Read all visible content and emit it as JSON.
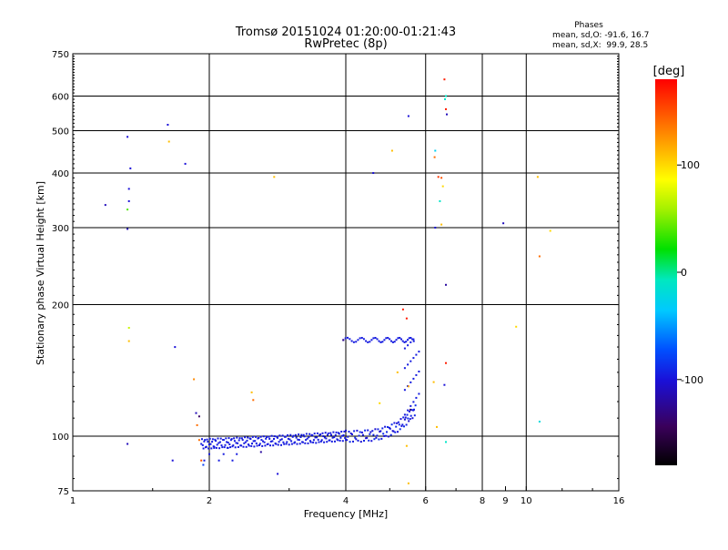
{
  "chart_data": {
    "type": "scatter",
    "title": "Tromsø 20151024 01:20:00-01:21:43",
    "subtitle": "RwPretec (8p)",
    "xlabel": "Frequency [MHz]",
    "ylabel": "Stationary phase Virtual Height [km]",
    "x_scale": "log2",
    "y_scale": "log",
    "xlim": [
      1,
      16
    ],
    "ylim": [
      75,
      750
    ],
    "x_ticks": [
      1,
      2,
      4,
      6,
      8,
      10,
      16
    ],
    "x_tick_labels": [
      "1",
      "2",
      "4",
      "6",
      "8",
      "10",
      "16"
    ],
    "x_minor_ticks": [
      9
    ],
    "x_minor_tick_labels": [
      "9"
    ],
    "x_grid": [
      2,
      4,
      6,
      8,
      10
    ],
    "y_ticks": [
      75,
      100,
      200,
      300,
      400,
      500,
      600,
      750
    ],
    "y_tick_labels": [
      "75",
      "100",
      "200",
      "300",
      "400",
      "500",
      "600",
      "750"
    ],
    "y_grid": [
      100,
      200,
      300,
      400,
      500,
      600
    ],
    "grid": true,
    "phases_box": {
      "title": "Phases",
      "line1": "mean, sd,O: -91.6, 16.7",
      "line2": "mean, sd,X:  99.9, 28.5"
    },
    "colorbar": {
      "label": "[deg]",
      "range": [
        -180,
        180
      ],
      "ticks": [
        100,
        0,
        -100
      ],
      "tick_labels": [
        "100",
        "0",
        "-100"
      ]
    },
    "o_trace_phase_deg": -95,
    "points": [
      [
        1.18,
        338,
        -110
      ],
      [
        1.32,
        298,
        -110
      ],
      [
        1.32,
        330,
        40
      ],
      [
        1.33,
        345,
        -100
      ],
      [
        1.33,
        368,
        -100
      ],
      [
        1.34,
        410,
        -100
      ],
      [
        1.32,
        484,
        -100
      ],
      [
        1.33,
        177,
        70
      ],
      [
        1.33,
        165,
        110
      ],
      [
        1.32,
        96,
        -110
      ],
      [
        1.62,
        516,
        -100
      ],
      [
        1.63,
        472,
        110
      ],
      [
        1.77,
        420,
        -100
      ],
      [
        1.68,
        160,
        -100
      ],
      [
        1.66,
        88,
        -100
      ],
      [
        1.85,
        135,
        130
      ],
      [
        1.87,
        113,
        -110
      ],
      [
        1.88,
        106,
        140
      ],
      [
        1.9,
        111,
        -140
      ],
      [
        1.9,
        98,
        140
      ],
      [
        1.92,
        88,
        150
      ],
      [
        1.94,
        86,
        -80
      ],
      [
        2.48,
        126,
        110
      ],
      [
        2.5,
        121,
        140
      ],
      [
        2.6,
        92,
        -120
      ],
      [
        2.78,
        392,
        110
      ],
      [
        2.83,
        82,
        -100
      ],
      [
        3.95,
        166,
        -130
      ],
      [
        4.6,
        400,
        -100
      ],
      [
        4.75,
        119,
        100
      ],
      [
        5.06,
        450,
        110
      ],
      [
        5.5,
        540,
        -100
      ],
      [
        5.2,
        140,
        110
      ],
      [
        5.35,
        195,
        170
      ],
      [
        5.45,
        186,
        170
      ],
      [
        5.5,
        130,
        120
      ],
      [
        5.55,
        115,
        -140
      ],
      [
        5.45,
        95,
        110
      ],
      [
        5.5,
        78,
        110
      ],
      [
        6.28,
        435,
        140
      ],
      [
        6.3,
        450,
        -30
      ],
      [
        6.4,
        392,
        160
      ],
      [
        6.45,
        345,
        -10
      ],
      [
        6.3,
        300,
        -100
      ],
      [
        6.5,
        305,
        110
      ],
      [
        6.55,
        373,
        100
      ],
      [
        6.5,
        390,
        150
      ],
      [
        6.35,
        105,
        110
      ],
      [
        6.25,
        133,
        110
      ],
      [
        6.6,
        655,
        170
      ],
      [
        6.65,
        600,
        -10
      ],
      [
        6.62,
        590,
        -10
      ],
      [
        6.65,
        560,
        170
      ],
      [
        6.68,
        545,
        -110
      ],
      [
        6.65,
        222,
        -120
      ],
      [
        6.65,
        147,
        170
      ],
      [
        6.6,
        131,
        -100
      ],
      [
        6.65,
        97,
        -10
      ],
      [
        8.9,
        307,
        -110
      ],
      [
        9.5,
        178,
        100
      ],
      [
        10.6,
        392,
        110
      ],
      [
        10.7,
        258,
        140
      ],
      [
        10.7,
        108,
        -20
      ],
      [
        11.3,
        295,
        100
      ]
    ]
  }
}
